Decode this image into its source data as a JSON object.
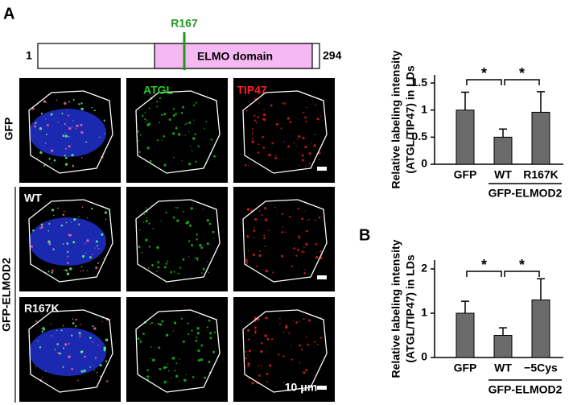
{
  "panels": {
    "a": "A",
    "b": "B"
  },
  "domain": {
    "start": 1,
    "end": 294,
    "mutation": "R167",
    "domain_label": "ELMO domain"
  },
  "micrographs": {
    "columns": [
      "ATGL",
      "TIP47"
    ],
    "rows": [
      "GFP",
      "WT",
      "R167K"
    ],
    "group": "GFP-ELMOD2",
    "scale_bar": "10 μm"
  },
  "chart_data": [
    {
      "type": "bar",
      "ylabel": [
        "Relative labeling intensity",
        "(ATGL/TIP47) in LDs"
      ],
      "categories": [
        "GFP",
        "WT",
        "R167K"
      ],
      "values": [
        1.0,
        0.5,
        0.96
      ],
      "errors": [
        0.33,
        0.15,
        0.38
      ],
      "group_label": "GFP-ELMOD2",
      "significance": [
        "*",
        "*"
      ],
      "color": "#6b6b6b",
      "ylim": [
        0,
        1.65
      ],
      "yticks": [
        0,
        0.5,
        1,
        1.5
      ]
    },
    {
      "type": "bar",
      "ylabel": [
        "Relative labeling intensity",
        "(ATGL/TIP47) in LDs"
      ],
      "categories": [
        "GFP",
        "WT",
        "−5Cys"
      ],
      "values": [
        1.0,
        0.5,
        1.3
      ],
      "errors": [
        0.27,
        0.17,
        0.48
      ],
      "group_label": "GFP-ELMOD2",
      "significance": [
        "*",
        "*"
      ],
      "color": "#6b6b6b",
      "ylim": [
        0,
        2.2
      ],
      "yticks": [
        0,
        1,
        2
      ]
    }
  ]
}
